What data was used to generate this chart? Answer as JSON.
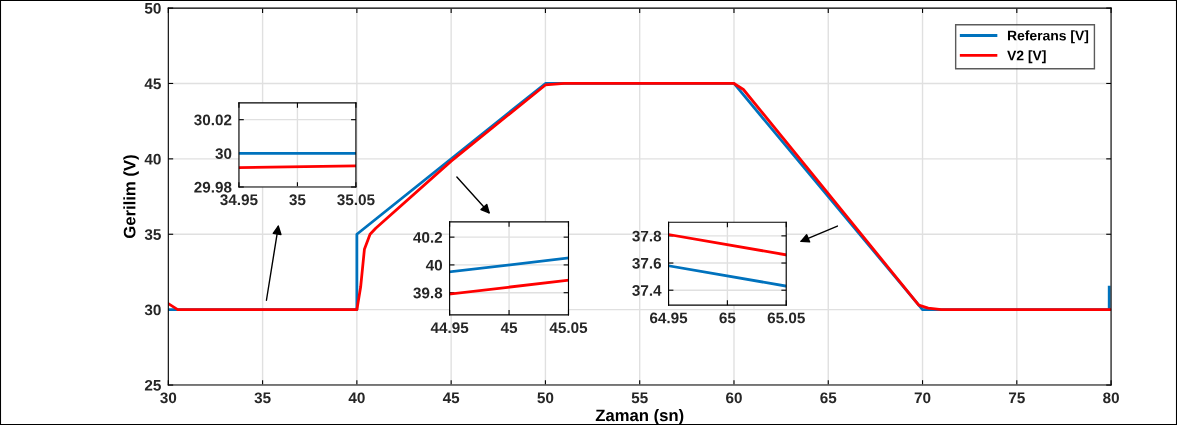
{
  "chart_data": [
    {
      "type": "line",
      "xlabel": "Zaman (sn)",
      "ylabel": "Gerilim (V)",
      "xlim": [
        30,
        80
      ],
      "xticks": [
        30,
        35,
        40,
        45,
        50,
        55,
        60,
        65,
        70,
        75,
        80
      ],
      "ylim": [
        25,
        50
      ],
      "yticks": [
        25,
        30,
        35,
        40,
        45,
        50
      ],
      "grid": true,
      "legend": "top right",
      "series": [
        {
          "name": "Referans [V]",
          "color": "#0072bd",
          "x": [
            30,
            40,
            40,
            50,
            60,
            70,
            79.9,
            79.9
          ],
          "values": [
            30,
            30,
            35,
            45,
            45,
            30,
            30,
            31.5
          ]
        },
        {
          "name": "V2 [V]",
          "color": "#ff0000",
          "x": [
            30,
            30.5,
            40,
            40.2,
            40.4,
            40.7,
            41,
            45,
            50,
            51,
            60,
            60.5,
            65,
            69.8,
            70.3,
            71,
            80
          ],
          "values": [
            30.4,
            30,
            30,
            31.5,
            34,
            35,
            35.4,
            39.85,
            44.9,
            45,
            45,
            44.6,
            37.7,
            30.3,
            30.1,
            30,
            30
          ]
        }
      ]
    },
    {
      "type": "line",
      "xlim": [
        34.95,
        35.05
      ],
      "xticks": [
        34.95,
        35,
        35.05
      ],
      "ylim": [
        29.98,
        30.03
      ],
      "yticks": [
        29.98,
        30,
        30.02
      ],
      "grid": true,
      "series": [
        {
          "color": "#0072bd",
          "x": [
            34.95,
            35.05
          ],
          "values": [
            30.0,
            30.0
          ]
        },
        {
          "color": "#ff0000",
          "x": [
            34.95,
            35.05
          ],
          "values": [
            29.9915,
            29.9925
          ]
        }
      ]
    },
    {
      "type": "line",
      "xlim": [
        44.95,
        45.05
      ],
      "xticks": [
        44.95,
        45,
        45.05
      ],
      "ylim": [
        39.64,
        40.31
      ],
      "yticks": [
        39.8,
        40,
        40.2
      ],
      "grid": true,
      "series": [
        {
          "color": "#0072bd",
          "x": [
            44.95,
            45.05
          ],
          "values": [
            39.95,
            40.05
          ]
        },
        {
          "color": "#ff0000",
          "x": [
            44.95,
            45.05
          ],
          "values": [
            39.79,
            39.89
          ]
        }
      ]
    },
    {
      "type": "line",
      "xlim": [
        64.95,
        65.05
      ],
      "xticks": [
        64.95,
        65,
        65.05
      ],
      "ylim": [
        37.29,
        37.9
      ],
      "yticks": [
        37.4,
        37.6,
        37.8
      ],
      "grid": true,
      "series": [
        {
          "color": "#ff0000",
          "x": [
            64.95,
            65.05
          ],
          "values": [
            37.81,
            37.66
          ]
        },
        {
          "color": "#0072bd",
          "x": [
            64.95,
            65.05
          ],
          "values": [
            37.58,
            37.43
          ]
        }
      ]
    }
  ]
}
